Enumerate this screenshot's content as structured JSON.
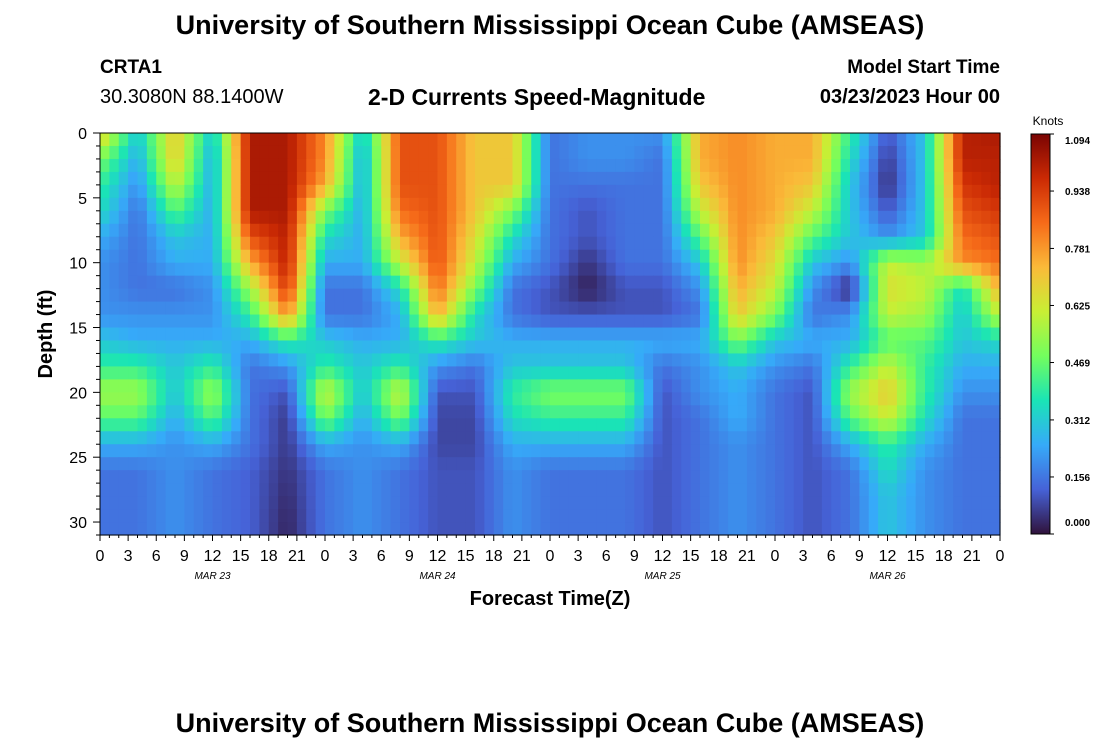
{
  "header": {
    "title": "University of Southern Mississippi Ocean Cube (AMSEAS)",
    "station": "CRTA1",
    "coordinates": "30.3080N  88.1400W",
    "subtitle": "2-D Currents Speed-Magnitude",
    "model_start_label": "Model Start Time",
    "model_start_value": "03/23/2023 Hour 00"
  },
  "footer": {
    "title": "University of Southern Mississippi Ocean Cube (AMSEAS)"
  },
  "chart_data": {
    "type": "heatmap",
    "title": "2-D Currents Speed-Magnitude",
    "xlabel": "Forecast Time(Z)",
    "ylabel": "Depth (ft)",
    "x_tick_labels": [
      "0",
      "3",
      "6",
      "9",
      "12",
      "15",
      "18",
      "21",
      "0",
      "3",
      "6",
      "9",
      "12",
      "15",
      "18",
      "21",
      "0",
      "3",
      "6",
      "9",
      "12",
      "15",
      "18",
      "21",
      "0",
      "3",
      "6",
      "9",
      "12",
      "15",
      "18",
      "21",
      "0"
    ],
    "x_range_hours": [
      0,
      96
    ],
    "date_labels": [
      {
        "label": "MAR 23",
        "hour": 12
      },
      {
        "label": "MAR 24",
        "hour": 36
      },
      {
        "label": "MAR 25",
        "hour": 60
      },
      {
        "label": "MAR 26",
        "hour": 84
      }
    ],
    "y_ticks": [
      0,
      5,
      10,
      15,
      20,
      25,
      30
    ],
    "y_range": [
      0,
      31
    ],
    "y_inverted": true,
    "colorbar": {
      "title": "Knots",
      "ticks": [
        "1.094",
        "0.938",
        "0.781",
        "0.625",
        "0.469",
        "0.312",
        "0.156",
        "0.000"
      ],
      "min": 0.0,
      "max": 1.094,
      "colormap": [
        "#30123b",
        "#4662d7",
        "#36aaf9",
        "#1ae4b6",
        "#72fe5e",
        "#c8ef34",
        "#faba39",
        "#f66b19",
        "#cb2a04",
        "#7a0403"
      ]
    },
    "grid": false,
    "hours": [
      0,
      4,
      8,
      12,
      16,
      20,
      24,
      28,
      32,
      36,
      40,
      44,
      48,
      52,
      56,
      60,
      64,
      68,
      72,
      76,
      80,
      84,
      88,
      92,
      96
    ],
    "depths": [
      0,
      2,
      4,
      6,
      8,
      10,
      12,
      14,
      16,
      18,
      20,
      22,
      24,
      26,
      28,
      30,
      31
    ],
    "values": [
      [
        0.7,
        0.3,
        0.7,
        0.3,
        1.02,
        1.02,
        0.8,
        0.3,
        0.9,
        0.9,
        0.7,
        0.7,
        0.15,
        0.2,
        0.2,
        0.2,
        0.75,
        0.8,
        0.75,
        0.75,
        0.4,
        0.1,
        0.3,
        1.0,
        1.02
      ],
      [
        0.5,
        0.25,
        0.7,
        0.25,
        1.02,
        1.02,
        0.8,
        0.25,
        0.9,
        0.9,
        0.7,
        0.7,
        0.15,
        0.2,
        0.2,
        0.15,
        0.75,
        0.8,
        0.75,
        0.75,
        0.35,
        0.06,
        0.3,
        1.0,
        1.0
      ],
      [
        0.4,
        0.2,
        0.6,
        0.25,
        1.02,
        1.02,
        0.75,
        0.25,
        0.9,
        0.9,
        0.7,
        0.7,
        0.15,
        0.15,
        0.15,
        0.15,
        0.7,
        0.8,
        0.75,
        0.7,
        0.3,
        0.04,
        0.3,
        0.95,
        1.0
      ],
      [
        0.35,
        0.15,
        0.45,
        0.25,
        1.02,
        1.02,
        0.5,
        0.25,
        0.85,
        0.9,
        0.7,
        0.5,
        0.15,
        0.1,
        0.15,
        0.15,
        0.6,
        0.8,
        0.75,
        0.6,
        0.3,
        0.1,
        0.3,
        0.9,
        0.95
      ],
      [
        0.25,
        0.15,
        0.3,
        0.25,
        0.9,
        1.0,
        0.35,
        0.25,
        0.75,
        0.9,
        0.65,
        0.35,
        0.15,
        0.1,
        0.15,
        0.15,
        0.45,
        0.8,
        0.7,
        0.45,
        0.3,
        0.2,
        0.3,
        0.85,
        0.9
      ],
      [
        0.2,
        0.15,
        0.25,
        0.25,
        0.75,
        1.0,
        0.25,
        0.25,
        0.6,
        0.9,
        0.6,
        0.25,
        0.15,
        0.05,
        0.15,
        0.15,
        0.3,
        0.8,
        0.65,
        0.3,
        0.2,
        0.6,
        0.55,
        0.8,
        0.85
      ],
      [
        0.2,
        0.15,
        0.15,
        0.2,
        0.55,
        0.95,
        0.15,
        0.15,
        0.35,
        0.85,
        0.5,
        0.15,
        0.1,
        0.02,
        0.1,
        0.1,
        0.2,
        0.75,
        0.6,
        0.2,
        0.03,
        0.65,
        0.6,
        0.35,
        0.75
      ],
      [
        0.2,
        0.2,
        0.2,
        0.2,
        0.4,
        0.8,
        0.15,
        0.15,
        0.25,
        0.75,
        0.35,
        0.15,
        0.1,
        0.1,
        0.1,
        0.1,
        0.15,
        0.7,
        0.5,
        0.15,
        0.2,
        0.6,
        0.55,
        0.3,
        0.6
      ],
      [
        0.3,
        0.25,
        0.25,
        0.25,
        0.25,
        0.4,
        0.3,
        0.25,
        0.25,
        0.4,
        0.3,
        0.25,
        0.25,
        0.25,
        0.25,
        0.25,
        0.25,
        0.5,
        0.3,
        0.25,
        0.25,
        0.45,
        0.45,
        0.3,
        0.35
      ],
      [
        0.4,
        0.4,
        0.3,
        0.4,
        0.15,
        0.2,
        0.4,
        0.3,
        0.4,
        0.2,
        0.15,
        0.3,
        0.3,
        0.3,
        0.3,
        0.15,
        0.2,
        0.3,
        0.2,
        0.15,
        0.4,
        0.6,
        0.4,
        0.25,
        0.25
      ],
      [
        0.55,
        0.55,
        0.3,
        0.55,
        0.15,
        0.1,
        0.62,
        0.3,
        0.62,
        0.1,
        0.1,
        0.4,
        0.5,
        0.5,
        0.5,
        0.1,
        0.2,
        0.25,
        0.15,
        0.1,
        0.55,
        0.7,
        0.4,
        0.2,
        0.2
      ],
      [
        0.45,
        0.45,
        0.25,
        0.45,
        0.15,
        0.06,
        0.5,
        0.25,
        0.5,
        0.08,
        0.08,
        0.35,
        0.4,
        0.4,
        0.4,
        0.1,
        0.15,
        0.25,
        0.15,
        0.1,
        0.45,
        0.62,
        0.35,
        0.15,
        0.15
      ],
      [
        0.25,
        0.25,
        0.2,
        0.25,
        0.15,
        0.06,
        0.25,
        0.2,
        0.25,
        0.08,
        0.08,
        0.25,
        0.25,
        0.25,
        0.25,
        0.1,
        0.15,
        0.2,
        0.15,
        0.1,
        0.25,
        0.4,
        0.25,
        0.15,
        0.15
      ],
      [
        0.15,
        0.15,
        0.2,
        0.15,
        0.12,
        0.05,
        0.15,
        0.2,
        0.15,
        0.1,
        0.1,
        0.2,
        0.15,
        0.15,
        0.15,
        0.1,
        0.15,
        0.2,
        0.15,
        0.1,
        0.15,
        0.35,
        0.2,
        0.15,
        0.15
      ],
      [
        0.15,
        0.15,
        0.2,
        0.15,
        0.12,
        0.04,
        0.15,
        0.2,
        0.15,
        0.1,
        0.1,
        0.2,
        0.15,
        0.15,
        0.15,
        0.1,
        0.15,
        0.2,
        0.15,
        0.1,
        0.15,
        0.3,
        0.2,
        0.15,
        0.15
      ],
      [
        0.15,
        0.15,
        0.2,
        0.15,
        0.12,
        0.03,
        0.15,
        0.2,
        0.15,
        0.1,
        0.1,
        0.2,
        0.15,
        0.15,
        0.15,
        0.1,
        0.15,
        0.2,
        0.15,
        0.1,
        0.15,
        0.3,
        0.2,
        0.15,
        0.15
      ],
      [
        0.15,
        0.15,
        0.2,
        0.15,
        0.12,
        0.03,
        0.15,
        0.2,
        0.15,
        0.1,
        0.1,
        0.2,
        0.15,
        0.15,
        0.15,
        0.1,
        0.15,
        0.2,
        0.15,
        0.1,
        0.15,
        0.3,
        0.2,
        0.15,
        0.15
      ]
    ]
  }
}
